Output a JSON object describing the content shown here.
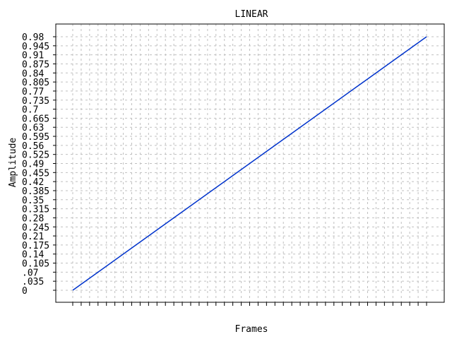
{
  "chart_data": {
    "type": "line",
    "title": "LINEAR",
    "xlabel": "Frames",
    "ylabel": "Amplitude",
    "y_tick_labels": [
      "0",
      ".035",
      ".07",
      "0.105",
      "0.14",
      "0.175",
      "0.21",
      "0.245",
      "0.28",
      "0.315",
      "0.35",
      "0.385",
      "0.42",
      "0.455",
      "0.49",
      "0.525",
      "0.56",
      "0.595",
      "0.63",
      "0.665",
      "0.7",
      "0.735",
      "0.77",
      "0.805",
      "0.84",
      "0.875",
      "0.91",
      "0.945",
      "0.98"
    ],
    "ylim": [
      0,
      0.98
    ],
    "grid": true,
    "x_tick_count": 43,
    "series": [
      {
        "color": "#0033cc",
        "x": [
          0,
          42
        ],
        "y": [
          0,
          0.98
        ]
      }
    ]
  }
}
